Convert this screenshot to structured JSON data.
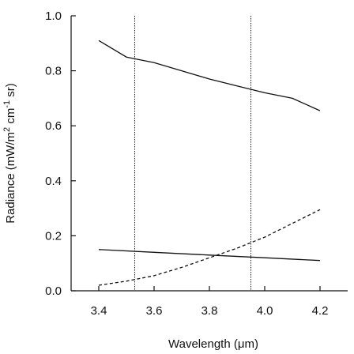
{
  "chart_data": {
    "type": "line",
    "xlabel": "Wavelength (μm)",
    "ylabel": "Radiance (mW/m",
    "ylabel_sup1": "2",
    "ylabel_mid": " cm",
    "ylabel_sup2": "-1",
    "ylabel_end": " sr)",
    "xlim": [
      3.3,
      4.3
    ],
    "ylim": [
      0,
      1.0
    ],
    "xticks": [
      "3.4",
      "3.6",
      "3.8",
      "4.0",
      "4.2"
    ],
    "xtick_values": [
      3.4,
      3.6,
      3.8,
      4.0,
      4.2
    ],
    "yticks": [
      "0.0",
      "0.2",
      "0.4",
      "0.6",
      "0.8",
      "1.0"
    ],
    "ytick_values": [
      0.0,
      0.2,
      0.4,
      0.6,
      0.8,
      1.0
    ],
    "vertical_lines": [
      3.53,
      3.95
    ],
    "series": [
      {
        "style": "solid",
        "x": [
          3.4,
          3.5,
          3.6,
          3.7,
          3.8,
          3.9,
          4.0,
          4.1,
          4.2
        ],
        "y": [
          0.91,
          0.85,
          0.83,
          0.8,
          0.77,
          0.745,
          0.72,
          0.7,
          0.655
        ]
      },
      {
        "style": "solid",
        "x": [
          3.4,
          3.6,
          3.8,
          4.0,
          4.2
        ],
        "y": [
          0.15,
          0.14,
          0.13,
          0.12,
          0.11
        ]
      },
      {
        "style": "dashed",
        "x": [
          3.4,
          3.5,
          3.6,
          3.7,
          3.8,
          3.9,
          4.0,
          4.1,
          4.2
        ],
        "y": [
          0.02,
          0.035,
          0.055,
          0.085,
          0.12,
          0.155,
          0.195,
          0.245,
          0.295
        ]
      }
    ]
  }
}
